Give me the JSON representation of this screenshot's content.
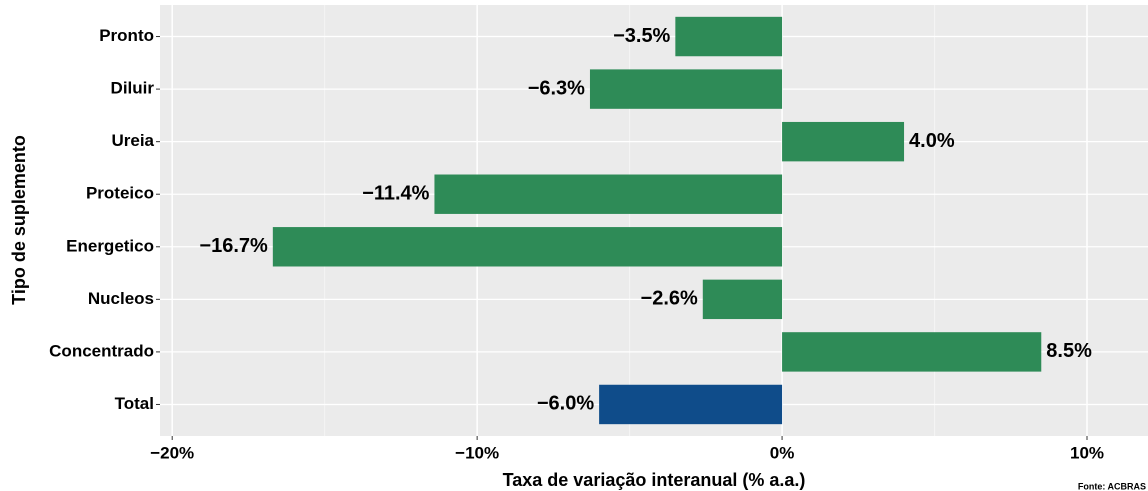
{
  "chart_data": {
    "type": "bar",
    "orientation": "horizontal",
    "x_label": "Taxa de variação interanual (% a.a.)",
    "y_label": "Tipo de suplemento",
    "caption": "Fonte: ACBRAS",
    "categories": [
      "Pronto",
      "Diluir",
      "Ureia",
      "Proteico",
      "Energetico",
      "Nucleos",
      "Concentrado",
      "Total"
    ],
    "values": [
      -3.5,
      -6.3,
      4.0,
      -11.4,
      -16.7,
      -2.6,
      8.5,
      -6.0
    ],
    "value_labels": [
      "−3.5%",
      "−6.3%",
      "4.0%",
      "−11.4%",
      "−16.7%",
      "−2.6%",
      "8.5%",
      "−6.0%"
    ],
    "colors": [
      "#2e8b57",
      "#2e8b57",
      "#2e8b57",
      "#2e8b57",
      "#2e8b57",
      "#2e8b57",
      "#2e8b57",
      "#0f4c8a"
    ],
    "xlim": [
      -20.4,
      12
    ],
    "xticks": [
      {
        "value": -20,
        "label": "−20%"
      },
      {
        "value": -10,
        "label": "−10%"
      },
      {
        "value": 0,
        "label": "0%"
      },
      {
        "value": 10,
        "label": "10%"
      }
    ],
    "minor_xticks": [
      -15,
      -5,
      5
    ],
    "grid": true
  }
}
